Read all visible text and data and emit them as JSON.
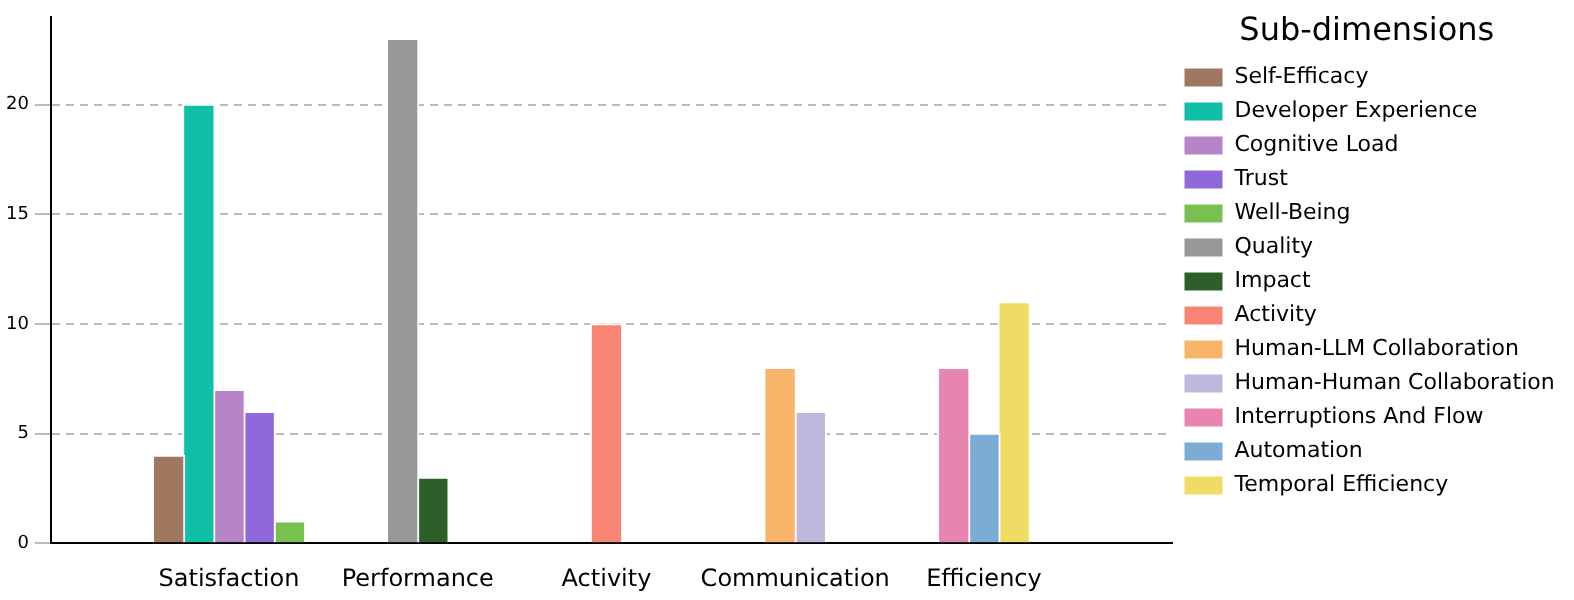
{
  "chart_data": {
    "type": "bar",
    "categories": [
      "Satisfaction",
      "Performance",
      "Activity",
      "Communication",
      "Efficiency"
    ],
    "series": [
      {
        "name": "Self-Efficacy",
        "color": "#a0785f",
        "values": [
          4,
          null,
          null,
          null,
          null
        ]
      },
      {
        "name": "Developer Experience",
        "color": "#10bfa8",
        "values": [
          20,
          null,
          null,
          null,
          null
        ]
      },
      {
        "name": "Cognitive Load",
        "color": "#b884c8",
        "values": [
          7,
          null,
          null,
          null,
          null
        ]
      },
      {
        "name": "Trust",
        "color": "#9068dc",
        "values": [
          6,
          null,
          null,
          null,
          null
        ]
      },
      {
        "name": "Well-Being",
        "color": "#78c050",
        "values": [
          1,
          null,
          null,
          null,
          null
        ]
      },
      {
        "name": "Quality",
        "color": "#989898",
        "values": [
          null,
          23,
          null,
          null,
          null
        ]
      },
      {
        "name": "Impact",
        "color": "#2c6028",
        "values": [
          null,
          3,
          null,
          null,
          null
        ]
      },
      {
        "name": "Activity",
        "color": "#f88474",
        "values": [
          null,
          null,
          10,
          null,
          null
        ]
      },
      {
        "name": "Human-LLM Collaboration",
        "color": "#f8b468",
        "values": [
          null,
          null,
          null,
          8,
          null
        ]
      },
      {
        "name": "Human-Human Collaboration",
        "color": "#c0b8dc",
        "values": [
          null,
          null,
          null,
          6,
          null
        ]
      },
      {
        "name": "Interruptions And Flow",
        "color": "#e884b0",
        "values": [
          null,
          null,
          null,
          null,
          8
        ]
      },
      {
        "name": "Automation",
        "color": "#7cacd4",
        "values": [
          null,
          null,
          null,
          null,
          5
        ]
      },
      {
        "name": "Temporal Efficiency",
        "color": "#f0dc64",
        "values": [
          null,
          null,
          null,
          null,
          11
        ]
      }
    ],
    "legend_title": "Sub-dimensions",
    "legend": "right",
    "ylim": [
      0,
      24
    ],
    "yticks": [
      0,
      5,
      10,
      15,
      20
    ],
    "grid": "y"
  }
}
